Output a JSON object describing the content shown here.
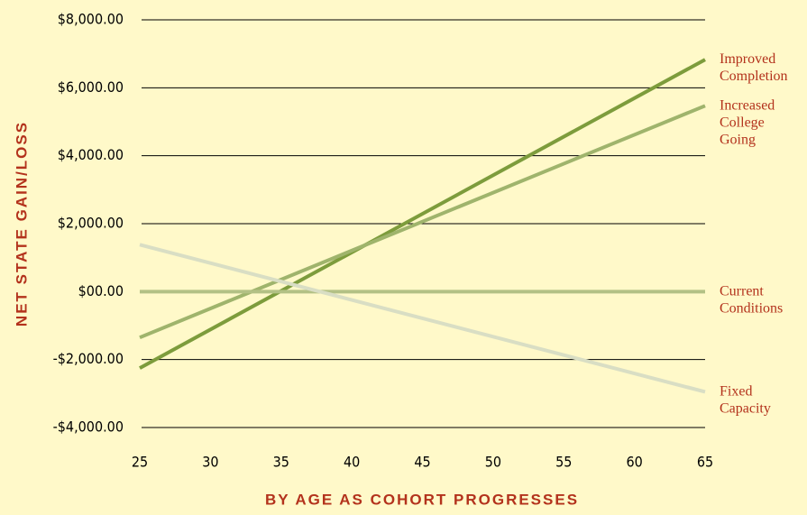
{
  "chart_data": {
    "type": "line",
    "x_label": "BY AGE AS COHORT PROGRESSES",
    "y_label": "NET STATE GAIN/LOSS",
    "x": [
      25,
      65
    ],
    "series": [
      {
        "name": "Improved Completion",
        "color": "#7d9c3c",
        "values": [
          -2250,
          6830
        ]
      },
      {
        "name": "Increased College Going",
        "color": "#9fb46c",
        "values": [
          -1350,
          5470
        ]
      },
      {
        "name": "Current Conditions",
        "color": "#b3c185",
        "values": [
          0,
          0
        ]
      },
      {
        "name": "Fixed Capacity",
        "color": "#d9dec4",
        "values": [
          1380,
          -2950
        ]
      }
    ],
    "xlim": [
      25,
      65
    ],
    "xticks": [
      25,
      30,
      35,
      40,
      45,
      50,
      55,
      60,
      65
    ],
    "ylim": [
      -4000,
      8000
    ],
    "yticks": [
      {
        "value": -4000,
        "label": "-$4,000.00"
      },
      {
        "value": -2000,
        "label": "-$2,000.00"
      },
      {
        "value": 0,
        "label": "$00.00"
      },
      {
        "value": 2000,
        "label": "$2,000.00"
      },
      {
        "value": 4000,
        "label": "$4,000.00"
      },
      {
        "value": 6000,
        "label": "$6,000.00"
      },
      {
        "value": 8000,
        "label": "$8,000.00"
      }
    ],
    "grid": true
  }
}
